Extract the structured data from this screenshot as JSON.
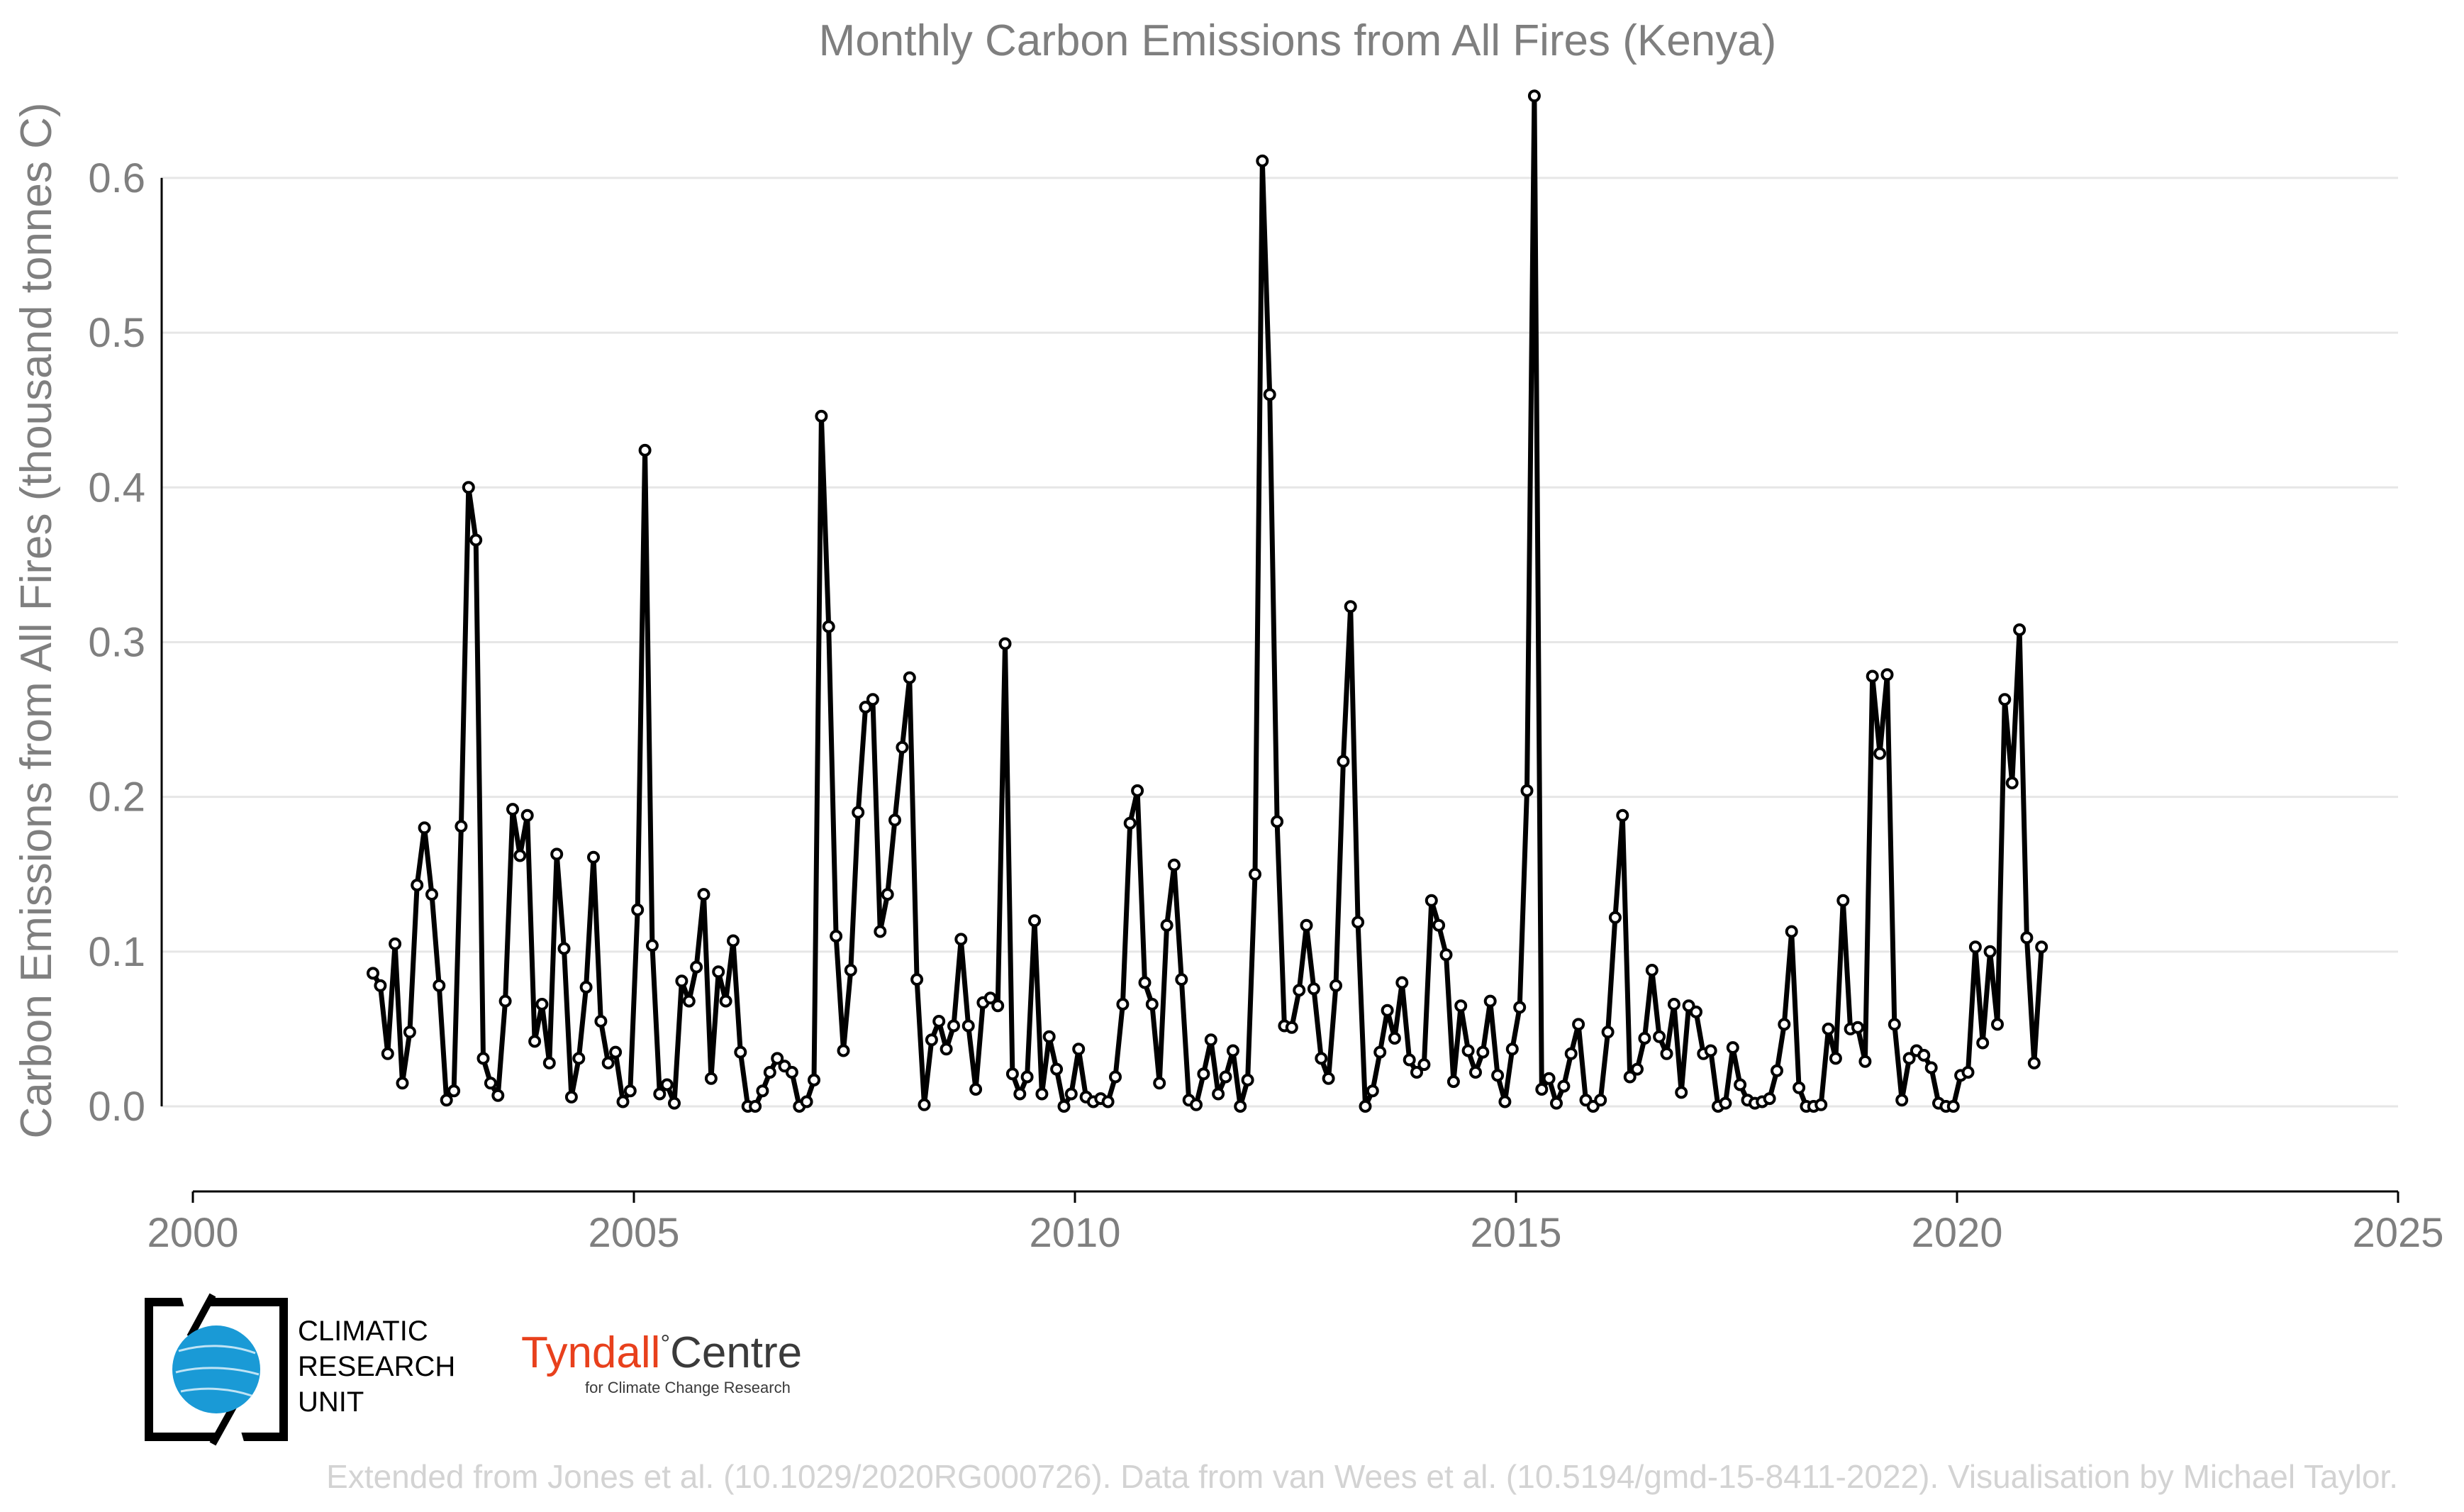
{
  "chart_data": {
    "type": "line",
    "title": "Monthly Carbon Emissions from All Fires (Kenya)",
    "xlabel": "",
    "ylabel": "Carbon Emissions from All Fires (thousand tonnes C)",
    "xlim": [
      2000,
      2025
    ],
    "ylim": [
      -0.055,
      0.66
    ],
    "x_ticks": [
      "2000",
      "2005",
      "2010",
      "2015",
      "2020",
      "2025"
    ],
    "y_ticks": [
      "0.0",
      "0.1",
      "0.2",
      "0.3",
      "0.4",
      "0.5",
      "0.6"
    ],
    "grid": true,
    "legend": "none",
    "x_start": 2002.042,
    "x_step": 0.08333,
    "series": [
      {
        "color": "#000000",
        "values": [
          0.086,
          0.078,
          0.034,
          0.105,
          0.015,
          0.048,
          0.143,
          0.18,
          0.137,
          0.078,
          0.004,
          0.01,
          0.181,
          0.4,
          0.366,
          0.031,
          0.015,
          0.007,
          0.068,
          0.192,
          0.162,
          0.188,
          0.042,
          0.066,
          0.028,
          0.163,
          0.102,
          0.006,
          0.031,
          0.077,
          0.161,
          0.055,
          0.028,
          0.035,
          0.003,
          0.01,
          0.127,
          0.424,
          0.104,
          0.008,
          0.014,
          0.002,
          0.081,
          0.068,
          0.09,
          0.137,
          0.018,
          0.087,
          0.068,
          0.107,
          0.035,
          0.0,
          0.0,
          0.01,
          0.022,
          0.031,
          0.026,
          0.022,
          0.0,
          0.003,
          0.017,
          0.446,
          0.31,
          0.11,
          0.036,
          0.088,
          0.19,
          0.258,
          0.263,
          0.113,
          0.137,
          0.185,
          0.232,
          0.277,
          0.082,
          0.001,
          0.043,
          0.055,
          0.037,
          0.052,
          0.108,
          0.052,
          0.011,
          0.067,
          0.07,
          0.065,
          0.299,
          0.021,
          0.008,
          0.019,
          0.12,
          0.008,
          0.045,
          0.024,
          0.0,
          0.008,
          0.037,
          0.006,
          0.003,
          0.005,
          0.003,
          0.019,
          0.066,
          0.183,
          0.204,
          0.08,
          0.066,
          0.015,
          0.117,
          0.156,
          0.082,
          0.004,
          0.001,
          0.021,
          0.043,
          0.008,
          0.019,
          0.036,
          0.0,
          0.017,
          0.15,
          0.611,
          0.46,
          0.184,
          0.052,
          0.051,
          0.075,
          0.117,
          0.076,
          0.031,
          0.018,
          0.078,
          0.223,
          0.323,
          0.119,
          0.0,
          0.01,
          0.035,
          0.062,
          0.044,
          0.08,
          0.03,
          0.022,
          0.027,
          0.133,
          0.117,
          0.098,
          0.016,
          0.065,
          0.036,
          0.022,
          0.035,
          0.068,
          0.02,
          0.003,
          0.037,
          0.064,
          0.204,
          0.653,
          0.011,
          0.018,
          0.002,
          0.013,
          0.034,
          0.053,
          0.004,
          0.0,
          0.004,
          0.048,
          0.122,
          0.188,
          0.019,
          0.024,
          0.044,
          0.088,
          0.045,
          0.034,
          0.066,
          0.009,
          0.065,
          0.061,
          0.034,
          0.036,
          0.0,
          0.002,
          0.038,
          0.014,
          0.004,
          0.002,
          0.003,
          0.005,
          0.023,
          0.053,
          0.113,
          0.012,
          0.0,
          0.0,
          0.001,
          0.05,
          0.031,
          0.133,
          0.05,
          0.051,
          0.029,
          0.278,
          0.228,
          0.279,
          0.053,
          0.004,
          0.031,
          0.036,
          0.033,
          0.025,
          0.002,
          0.0,
          0.0,
          0.02,
          0.022,
          0.103,
          0.041,
          0.1,
          0.053,
          0.263,
          0.209,
          0.308,
          0.109,
          0.028,
          0.103
        ]
      }
    ]
  },
  "logos": {
    "cru": {
      "lines": [
        "CLIMATIC",
        "RESEARCH",
        "UNIT"
      ]
    },
    "tyndall": {
      "name": "Tyndall",
      "degree": "°",
      "centre": "Centre",
      "subtitle": "for Climate Change Research"
    }
  },
  "credit": "Extended from Jones et al. (10.1029/2020RG000726). Data from van Wees et al. (10.5194/gmd-15-8411-2022). Visualisation by Michael Taylor."
}
